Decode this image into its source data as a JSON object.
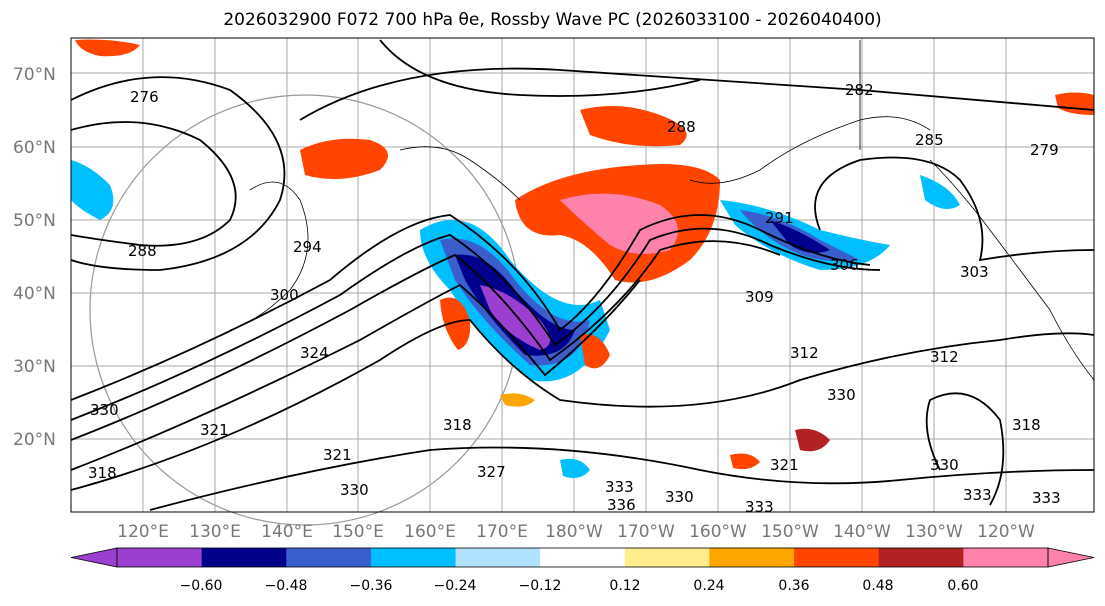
{
  "title": "2026032900 F072 700 hPa θe, Rossby Wave PC (2026033100 - 2026040400)",
  "map": {
    "lat_labels": [
      "70°N",
      "60°N",
      "50°N",
      "40°N",
      "30°N",
      "20°N"
    ],
    "lon_labels": [
      "120°E",
      "130°E",
      "140°E",
      "150°E",
      "160°E",
      "170°E",
      "180°W",
      "170°W",
      "160°W",
      "150°W",
      "140°W",
      "130°W",
      "120°W"
    ],
    "contour_labels": [
      "276",
      "282",
      "288",
      "285",
      "279",
      "294",
      "291",
      "288",
      "300",
      "306",
      "303",
      "309",
      "312",
      "324",
      "312",
      "318",
      "318",
      "321",
      "321",
      "327",
      "330",
      "330",
      "333",
      "330",
      "336",
      "333",
      "333",
      "330",
      "333",
      "318",
      "330",
      "321"
    ]
  },
  "colorbar": {
    "colors": [
      "#9a3fd0",
      "#00008b",
      "#3a5fcd",
      "#00bfff",
      "#b0e2ff",
      "#ffffff",
      "#ffec8b",
      "#ffa500",
      "#ff4500",
      "#b22222",
      "#ff82ab"
    ],
    "tick_labels": [
      "−0.60",
      "−0.48",
      "−0.36",
      "−0.24",
      "−0.12",
      "0.12",
      "0.24",
      "0.36",
      "0.48",
      "0.60"
    ]
  }
}
